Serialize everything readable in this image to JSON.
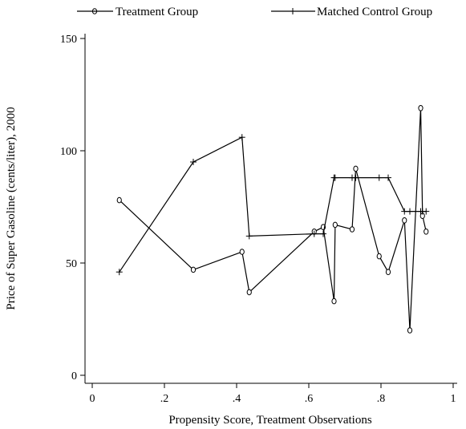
{
  "chart_data": {
    "type": "line",
    "title": "",
    "xlabel": "Propensity Score, Treatment Observations",
    "ylabel": "Price of Super Gasoline (cents/liter), 2000",
    "xlim": [
      0,
      1
    ],
    "ylim": [
      0,
      150
    ],
    "x_ticks": [
      0,
      0.2,
      0.4,
      0.6,
      0.8,
      1
    ],
    "x_tick_labels": [
      "0",
      ".2",
      ".4",
      ".6",
      ".8",
      "1"
    ],
    "y_ticks": [
      0,
      50,
      100,
      150
    ],
    "y_tick_labels": [
      "0",
      "50",
      "100",
      "150"
    ],
    "grid": false,
    "legend_position": "top",
    "series": [
      {
        "name": "Treatment Group",
        "marker": "circle",
        "x": [
          0.075,
          0.28,
          0.415,
          0.435,
          0.615,
          0.64,
          0.67,
          0.673,
          0.72,
          0.73,
          0.795,
          0.82,
          0.865,
          0.88,
          0.91,
          0.915,
          0.925
        ],
        "y": [
          78,
          47,
          55,
          37,
          64,
          66,
          33,
          67,
          65,
          92,
          53,
          46,
          69,
          20,
          119,
          71,
          64
        ]
      },
      {
        "name": "Matched Control Group",
        "marker": "plus",
        "x": [
          0.075,
          0.28,
          0.415,
          0.435,
          0.615,
          0.64,
          0.67,
          0.673,
          0.72,
          0.73,
          0.795,
          0.82,
          0.865,
          0.88,
          0.91,
          0.915,
          0.925
        ],
        "y": [
          46,
          95,
          106,
          62,
          63,
          63,
          88,
          88,
          88,
          88,
          88,
          88,
          73,
          73,
          73,
          73,
          73
        ]
      }
    ]
  }
}
